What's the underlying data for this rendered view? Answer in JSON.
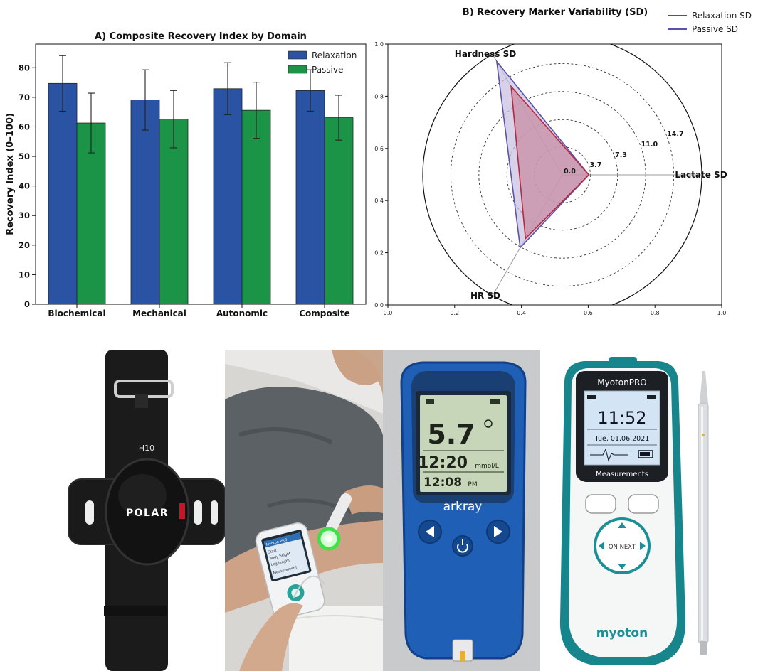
{
  "chart_data": [
    {
      "type": "bar",
      "title": "A) Composite Recovery Index by Domain",
      "xlabel": "",
      "ylabel": "Recovery Index (0–100)",
      "ylim": [
        0,
        88
      ],
      "yticks": [
        0,
        10,
        20,
        30,
        40,
        50,
        60,
        70,
        80
      ],
      "categories": [
        "Biochemical",
        "Mechanical",
        "Autonomic",
        "Composite"
      ],
      "series": [
        {
          "name": "Relaxation",
          "color": "#2a54a3",
          "values": [
            74.7,
            69.1,
            72.9,
            72.3
          ],
          "error": [
            9.4,
            10.2,
            8.8,
            7.0
          ]
        },
        {
          "name": "Passive",
          "color": "#1c9448",
          "values": [
            61.3,
            62.6,
            65.6,
            63.1
          ],
          "error": [
            10.1,
            9.7,
            9.5,
            7.6
          ]
        }
      ],
      "legend": "top-right",
      "grid": false
    },
    {
      "type": "radar",
      "title": "B) Recovery Marker Variability (SD)",
      "axes": [
        "Lactate SD",
        "Hardness SD",
        "HR SD"
      ],
      "rings": [
        3.7,
        7.3,
        11.0,
        14.7
      ],
      "ring_labels": [
        "0.0",
        "3.7",
        "7.3",
        "11.0",
        "14.7"
      ],
      "rmax": 18.4,
      "series": [
        {
          "name": "Relaxation SD",
          "color": "#b5283d",
          "fill": "#c98aa1",
          "values": [
            3.5,
            13.5,
            9.7
          ]
        },
        {
          "name": "Passive SD",
          "color": "#5a53a6",
          "fill": "#c6bddf",
          "values": [
            3.5,
            17.3,
            11.1
          ]
        }
      ],
      "frame_ticks": [
        "0.0",
        "0.2",
        "0.4",
        "0.6",
        "0.8",
        "1.0"
      ],
      "legend": "top-right"
    }
  ],
  "devices": {
    "polar": {
      "strap_label": "H10",
      "logo": "POLAR"
    },
    "phone": {
      "lines": [
        "Myoton PRO",
        "Start",
        "Body height",
        "Leg length",
        "Measurement"
      ]
    },
    "lactate": {
      "big_value": "5.7",
      "reading": "12:20",
      "unit": "mmol/L",
      "clock": "12:08",
      "meridiem": "PM",
      "brand": "arkray"
    },
    "myoton": {
      "brand_title": "MyotonPRO",
      "time": "11:52",
      "date": "Tue, 01.06.2021",
      "menu": "Measurements",
      "center_button": "ON NEXT",
      "logo": "myoton"
    }
  }
}
